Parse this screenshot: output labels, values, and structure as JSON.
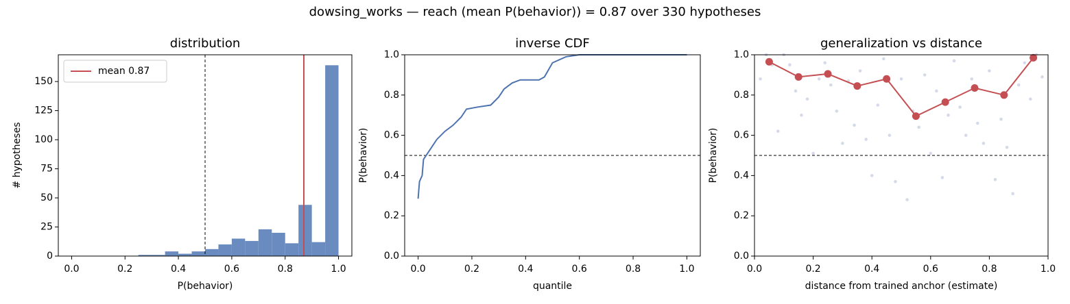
{
  "title": "dowsing_works  —  reach (mean P(behavior)) = 0.87  over 330 hypotheses",
  "chart_data": [
    {
      "type": "histogram",
      "title": "distribution",
      "x_label": "P(behavior)",
      "y_label": "# hypotheses",
      "bins": [
        0,
        0.05,
        0.1,
        0.15,
        0.2,
        0.25,
        0.3,
        0.35,
        0.4,
        0.45,
        0.5,
        0.55,
        0.6,
        0.65,
        0.7,
        0.75,
        0.8,
        0.85,
        0.9,
        0.95,
        1
      ],
      "values": [
        0,
        0,
        0,
        0,
        0,
        1,
        1,
        4,
        2,
        4,
        6,
        10,
        15,
        13,
        23,
        20,
        11,
        44,
        12,
        164
      ],
      "color": "#6a8bbf",
      "threshold": 0.5,
      "mean_line": {
        "name": "mean 0.87",
        "value": 0.87,
        "color": "#c44e52"
      },
      "legend": "upper left",
      "xlim": [
        -0.05,
        1.05
      ],
      "ylim": [
        0,
        173
      ],
      "xticks": [
        {
          "value": 0,
          "label": "0.0"
        },
        {
          "value": 0.2,
          "label": "0.2"
        },
        {
          "value": 0.4,
          "label": "0.4"
        },
        {
          "value": 0.6,
          "label": "0.6"
        },
        {
          "value": 0.8,
          "label": "0.8"
        },
        {
          "value": 1,
          "label": "1.0"
        }
      ],
      "yticks": [
        0,
        25,
        50,
        75,
        100,
        125,
        150
      ]
    },
    {
      "type": "line",
      "title": "inverse CDF",
      "x_label": "quantile",
      "y_label": "P(behavior)",
      "x": [
        0,
        0.005,
        0.015,
        0.02,
        0.035,
        0.05,
        0.07,
        0.1,
        0.13,
        0.16,
        0.18,
        0.22,
        0.27,
        0.3,
        0.32,
        0.35,
        0.38,
        0.45,
        0.47,
        0.5,
        0.55,
        0.6,
        1
      ],
      "values": [
        0.285,
        0.37,
        0.4,
        0.48,
        0.51,
        0.54,
        0.58,
        0.62,
        0.65,
        0.69,
        0.73,
        0.74,
        0.75,
        0.79,
        0.83,
        0.86,
        0.875,
        0.875,
        0.89,
        0.96,
        0.99,
        1,
        1
      ],
      "color": "#4c72b0",
      "threshold": 0.5,
      "xlim": [
        -0.05,
        1.05
      ],
      "ylim": [
        0,
        1
      ],
      "xticks": [
        {
          "value": 0,
          "label": "0.0"
        },
        {
          "value": 0.2,
          "label": "0.2"
        },
        {
          "value": 0.4,
          "label": "0.4"
        },
        {
          "value": 0.6,
          "label": "0.6"
        },
        {
          "value": 0.8,
          "label": "0.8"
        },
        {
          "value": 1,
          "label": "1.0"
        }
      ],
      "yticks": [
        {
          "value": 0,
          "label": "0.0"
        },
        {
          "value": 0.2,
          "label": "0.2"
        },
        {
          "value": 0.4,
          "label": "0.4"
        },
        {
          "value": 0.6,
          "label": "0.6"
        },
        {
          "value": 0.8,
          "label": "0.8"
        },
        {
          "value": 1,
          "label": "1.0"
        }
      ]
    },
    {
      "type": "scatter",
      "title": "generalization vs distance",
      "x_label": "distance from trained anchor (estimate)",
      "y_label": "P(behavior)",
      "points": {
        "color": "#b0bcd6",
        "x": [
          0.02,
          0.04,
          0.06,
          0.08,
          0.1,
          0.12,
          0.14,
          0.16,
          0.18,
          0.2,
          0.22,
          0.24,
          0.26,
          0.28,
          0.3,
          0.32,
          0.34,
          0.36,
          0.38,
          0.4,
          0.42,
          0.44,
          0.46,
          0.48,
          0.5,
          0.52,
          0.54,
          0.56,
          0.58,
          0.6,
          0.62,
          0.64,
          0.66,
          0.68,
          0.7,
          0.72,
          0.74,
          0.76,
          0.78,
          0.8,
          0.82,
          0.84,
          0.86,
          0.88,
          0.9,
          0.92,
          0.94,
          0.96,
          0.98
        ],
        "values": [
          0.88,
          1,
          0.95,
          0.62,
          1,
          0.95,
          0.82,
          0.7,
          0.78,
          0.51,
          0.88,
          0.96,
          0.85,
          0.72,
          0.56,
          0.87,
          0.65,
          0.92,
          0.58,
          0.4,
          0.75,
          0.98,
          0.6,
          0.37,
          0.88,
          0.28,
          0.72,
          0.64,
          0.9,
          0.51,
          0.82,
          0.39,
          0.7,
          0.97,
          0.74,
          0.6,
          0.88,
          0.66,
          0.56,
          0.92,
          0.38,
          0.68,
          0.54,
          0.31,
          0.85,
          0.96,
          0.78,
          1,
          0.89
        ]
      },
      "series": [
        {
          "color": "#c44e52",
          "x": [
            0.05,
            0.15,
            0.25,
            0.35,
            0.45,
            0.55,
            0.65,
            0.75,
            0.85,
            0.95
          ],
          "values": [
            0.965,
            0.89,
            0.905,
            0.845,
            0.88,
            0.695,
            0.765,
            0.835,
            0.8,
            0.985
          ]
        }
      ],
      "threshold": 0.5,
      "xlim": [
        0,
        1
      ],
      "ylim": [
        0,
        1
      ],
      "xticks": [
        {
          "value": 0,
          "label": "0.0"
        },
        {
          "value": 0.2,
          "label": "0.2"
        },
        {
          "value": 0.4,
          "label": "0.4"
        },
        {
          "value": 0.6,
          "label": "0.6"
        },
        {
          "value": 0.8,
          "label": "0.8"
        },
        {
          "value": 1,
          "label": "1.0"
        }
      ],
      "yticks": [
        {
          "value": 0,
          "label": "0.0"
        },
        {
          "value": 0.2,
          "label": "0.2"
        },
        {
          "value": 0.4,
          "label": "0.4"
        },
        {
          "value": 0.6,
          "label": "0.6"
        },
        {
          "value": 0.8,
          "label": "0.8"
        },
        {
          "value": 1,
          "label": "1.0"
        }
      ]
    }
  ]
}
